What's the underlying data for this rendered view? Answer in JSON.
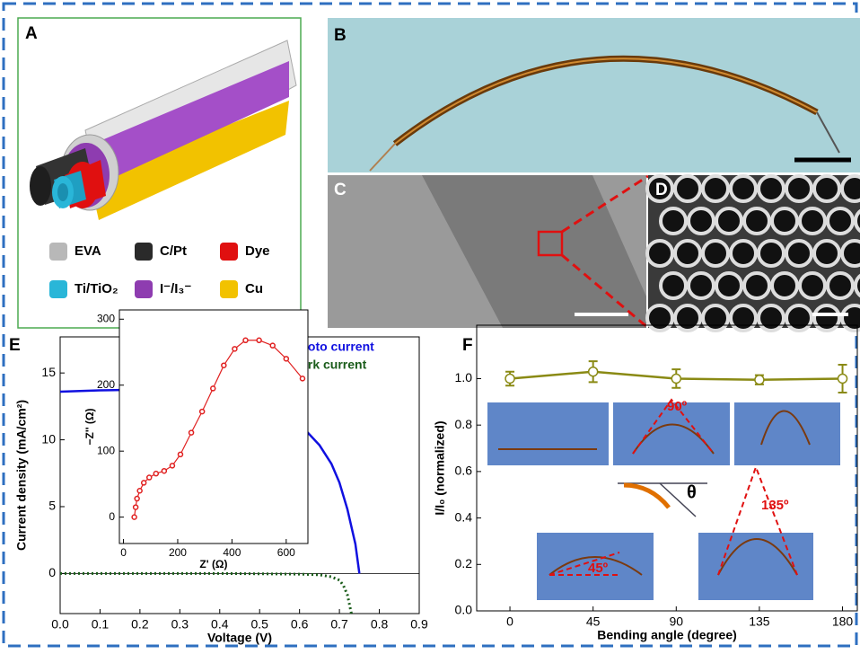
{
  "panels": {
    "a": "A",
    "b": "B",
    "c": "C",
    "d": "D",
    "e": "E",
    "f": "F"
  },
  "legend": [
    {
      "label": "EVA",
      "color": "#b8b8b8"
    },
    {
      "label": "C/Pt",
      "color": "#2a2a2a"
    },
    {
      "label": "Dye",
      "color": "#e01010"
    },
    {
      "label": "Ti/TiO₂",
      "color": "#29b6d8"
    },
    {
      "label": "I⁻/I₃⁻",
      "color": "#8e3cb0"
    },
    {
      "label": "Cu",
      "color": "#f2c200"
    }
  ],
  "chart_data": [
    {
      "type": "line",
      "xlabel": "Voltage (V)",
      "ylabel": "Current density (mA/cm²)",
      "xlim": [
        0,
        0.9
      ],
      "ylim": [
        -3,
        17.7
      ],
      "xticks": [
        {
          "value": 0,
          "label": "0.0"
        },
        0.1,
        0.2,
        0.3,
        0.4,
        0.5,
        0.6,
        0.7,
        0.8,
        0.9
      ],
      "yticks": [
        0,
        5,
        10,
        15
      ],
      "zero_line": true,
      "legend": "upper right",
      "series": [
        {
          "name": "Photo current",
          "color": "#1010e0",
          "dash": "solid",
          "x": [
            0,
            0.1,
            0.2,
            0.3,
            0.4,
            0.45,
            0.5,
            0.55,
            0.6,
            0.65,
            0.68,
            0.7,
            0.72,
            0.74,
            0.75
          ],
          "values": [
            13.6,
            13.7,
            13.75,
            13.6,
            13.3,
            13.1,
            12.8,
            12.1,
            11.2,
            9.6,
            8.2,
            6.8,
            4.8,
            2.2,
            0
          ]
        },
        {
          "name": "Dark current",
          "color": "#1a5c1a",
          "dash": "dotted",
          "x": [
            0,
            0.2,
            0.4,
            0.6,
            0.65,
            0.68,
            0.7,
            0.71,
            0.72,
            0.73
          ],
          "values": [
            0,
            0,
            0,
            -0.05,
            -0.1,
            -0.25,
            -0.5,
            -0.9,
            -1.6,
            -3
          ]
        }
      ]
    },
    {
      "type": "line",
      "xlabel": "Z' (Ω)",
      "ylabel": "−Z'' (Ω)",
      "xlim": [
        -15,
        680
      ],
      "ylim": [
        -40,
        314
      ],
      "xticks": [
        0,
        200,
        400,
        600
      ],
      "yticks": [
        0,
        100,
        200,
        300
      ],
      "series": [
        {
          "color": "#e02020",
          "marker": "circle",
          "x": [
            40,
            45,
            50,
            60,
            75,
            95,
            120,
            150,
            180,
            210,
            250,
            290,
            330,
            370,
            410,
            450,
            500,
            550,
            600,
            660
          ],
          "values": [
            0,
            15,
            28,
            40,
            52,
            60,
            66,
            70,
            78,
            95,
            128,
            160,
            195,
            230,
            255,
            268,
            268,
            260,
            240,
            210
          ]
        }
      ]
    },
    {
      "type": "line",
      "xlabel": "Bending angle (degree)",
      "ylabel": "I/I₀ (normalized)",
      "xlim": [
        -18,
        188
      ],
      "ylim": [
        0,
        1.23
      ],
      "xticks": [
        0,
        45,
        90,
        135,
        180
      ],
      "yticks": [
        {
          "value": 0,
          "label": "0.0"
        },
        0.2,
        0.4,
        0.6,
        0.8,
        {
          "value": 1,
          "label": "1.0"
        }
      ],
      "annotations": [
        "90º",
        "135º",
        "45º",
        "θ"
      ],
      "series": [
        {
          "color": "#8a8a14",
          "marker": "circle",
          "x": [
            0,
            45,
            90,
            135,
            180
          ],
          "values": [
            1.0,
            1.03,
            1.0,
            0.995,
            1.0
          ],
          "errors": [
            0.03,
            0.045,
            0.04,
            0.02,
            0.06
          ]
        }
      ]
    }
  ]
}
